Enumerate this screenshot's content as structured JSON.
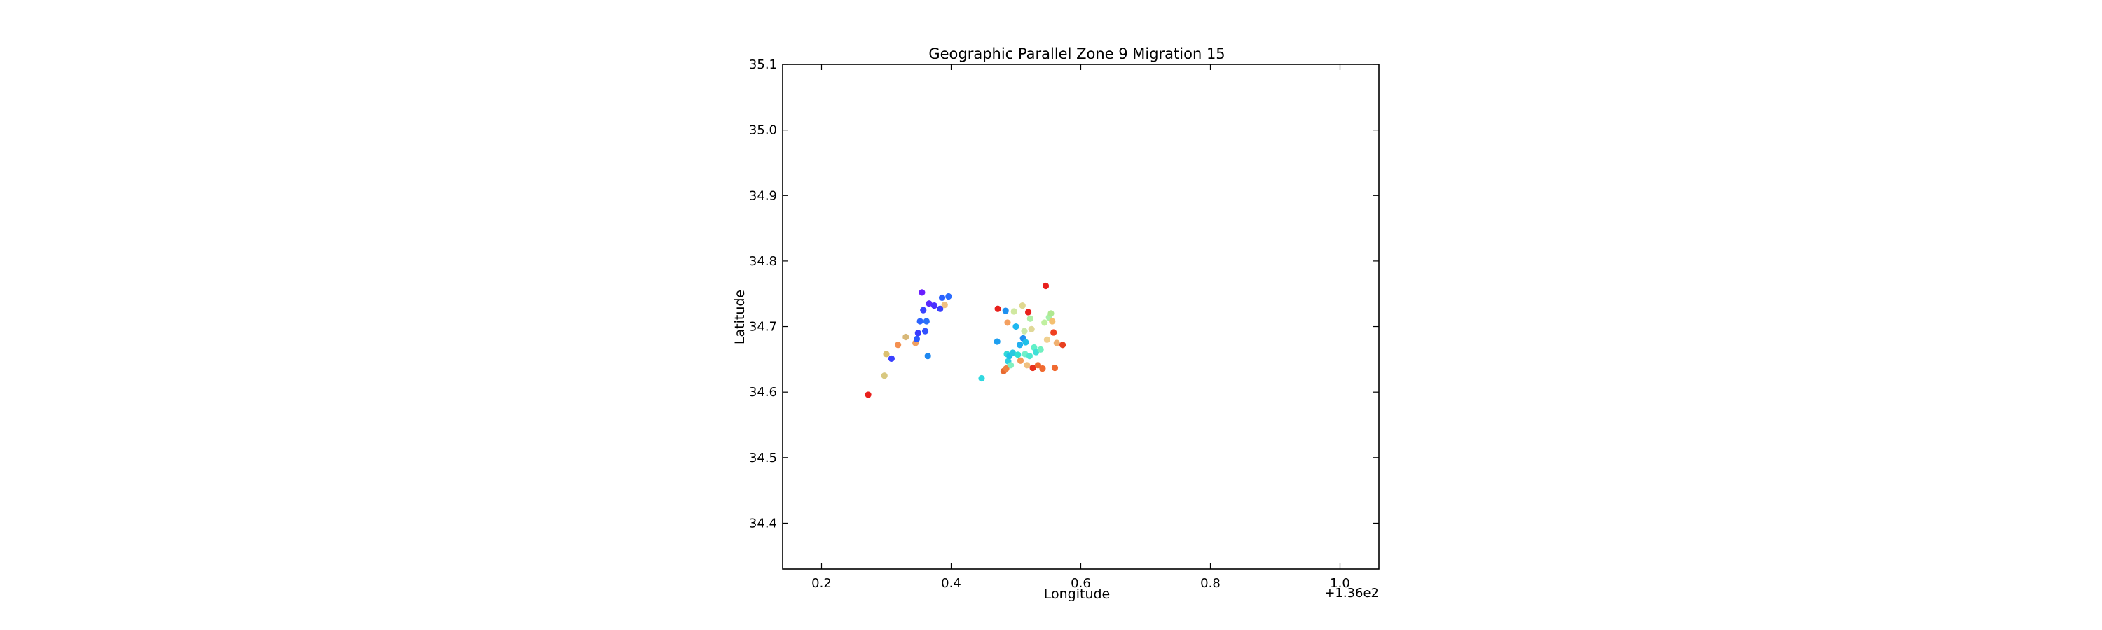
{
  "chart_data": {
    "type": "scatter",
    "title": "Geographic Parallel Zone 9 Migration 15",
    "xlabel": "Longitude",
    "ylabel": "Latitude",
    "x_offset_label": "+1.36e2",
    "x_offset": 136,
    "xlim": [
      136.14,
      137.06
    ],
    "ylim": [
      34.33,
      35.1
    ],
    "x_ticks": [
      136.2,
      136.4,
      136.6,
      136.8,
      137.0
    ],
    "x_tick_labels": [
      "0.2",
      "0.4",
      "0.6",
      "0.8",
      "1.0"
    ],
    "y_ticks": [
      34.4,
      34.5,
      34.6,
      34.7,
      34.8,
      34.9,
      35.0,
      35.1
    ],
    "y_tick_labels": [
      "34.4",
      "34.5",
      "34.6",
      "34.7",
      "34.8",
      "34.9",
      "35.0",
      "35.1"
    ],
    "grid": false,
    "colormap": "rainbow",
    "points": [
      {
        "x": 136.272,
        "y": 34.596,
        "color": "#e8201c"
      },
      {
        "x": 136.297,
        "y": 34.625,
        "color": "#d8c880"
      },
      {
        "x": 136.3,
        "y": 34.658,
        "color": "#dcc070"
      },
      {
        "x": 136.308,
        "y": 34.651,
        "color": "#3a40ff"
      },
      {
        "x": 136.318,
        "y": 34.672,
        "color": "#f49050"
      },
      {
        "x": 136.33,
        "y": 34.684,
        "color": "#d8b878"
      },
      {
        "x": 136.345,
        "y": 34.675,
        "color": "#f0a060"
      },
      {
        "x": 136.347,
        "y": 34.681,
        "color": "#2a5cff"
      },
      {
        "x": 136.349,
        "y": 34.69,
        "color": "#3a3cff"
      },
      {
        "x": 136.352,
        "y": 34.708,
        "color": "#2c64ff"
      },
      {
        "x": 136.355,
        "y": 34.752,
        "color": "#6a1eff"
      },
      {
        "x": 136.357,
        "y": 34.725,
        "color": "#3a44ff"
      },
      {
        "x": 136.36,
        "y": 34.693,
        "color": "#3050ff"
      },
      {
        "x": 136.362,
        "y": 34.708,
        "color": "#2a70f8"
      },
      {
        "x": 136.364,
        "y": 34.655,
        "color": "#1e88f0"
      },
      {
        "x": 136.366,
        "y": 34.735,
        "color": "#5a2aff"
      },
      {
        "x": 136.374,
        "y": 34.732,
        "color": "#4a30ff"
      },
      {
        "x": 136.383,
        "y": 34.727,
        "color": "#3a40ff"
      },
      {
        "x": 136.386,
        "y": 34.744,
        "color": "#2a60ff"
      },
      {
        "x": 136.39,
        "y": 34.733,
        "color": "#f0c080"
      },
      {
        "x": 136.396,
        "y": 34.746,
        "color": "#2a6cff"
      },
      {
        "x": 136.447,
        "y": 34.621,
        "color": "#30d8e0"
      },
      {
        "x": 136.471,
        "y": 34.677,
        "color": "#1e9ff0"
      },
      {
        "x": 136.472,
        "y": 34.727,
        "color": "#e8201c"
      },
      {
        "x": 136.481,
        "y": 34.632,
        "color": "#e86a30"
      },
      {
        "x": 136.484,
        "y": 34.724,
        "color": "#1e90f0"
      },
      {
        "x": 136.485,
        "y": 34.636,
        "color": "#f08040"
      },
      {
        "x": 136.486,
        "y": 34.658,
        "color": "#30d8d8"
      },
      {
        "x": 136.487,
        "y": 34.706,
        "color": "#f4a060"
      },
      {
        "x": 136.488,
        "y": 34.647,
        "color": "#30d0e0"
      },
      {
        "x": 136.49,
        "y": 34.655,
        "color": "#20c0e8"
      },
      {
        "x": 136.492,
        "y": 34.641,
        "color": "#80f0c0"
      },
      {
        "x": 136.495,
        "y": 34.66,
        "color": "#28c8e0"
      },
      {
        "x": 136.497,
        "y": 34.723,
        "color": "#d0e8a0"
      },
      {
        "x": 136.5,
        "y": 34.7,
        "color": "#1eb8f0"
      },
      {
        "x": 136.503,
        "y": 34.657,
        "color": "#30e0d0"
      },
      {
        "x": 136.506,
        "y": 34.672,
        "color": "#20b0f0"
      },
      {
        "x": 136.507,
        "y": 34.648,
        "color": "#f49a58"
      },
      {
        "x": 136.51,
        "y": 34.732,
        "color": "#e0d890"
      },
      {
        "x": 136.511,
        "y": 34.682,
        "color": "#2090f0"
      },
      {
        "x": 136.513,
        "y": 34.693,
        "color": "#c8e8a8"
      },
      {
        "x": 136.514,
        "y": 34.658,
        "color": "#70f0c8"
      },
      {
        "x": 136.515,
        "y": 34.676,
        "color": "#1ec0e8"
      },
      {
        "x": 136.517,
        "y": 34.641,
        "color": "#f0c080"
      },
      {
        "x": 136.519,
        "y": 34.722,
        "color": "#e8201c"
      },
      {
        "x": 136.521,
        "y": 34.655,
        "color": "#50e8d0"
      },
      {
        "x": 136.522,
        "y": 34.712,
        "color": "#b0f0a8"
      },
      {
        "x": 136.524,
        "y": 34.696,
        "color": "#e0d898"
      },
      {
        "x": 136.526,
        "y": 34.637,
        "color": "#e8301c"
      },
      {
        "x": 136.528,
        "y": 34.668,
        "color": "#60f0c8"
      },
      {
        "x": 136.531,
        "y": 34.661,
        "color": "#40e0d8"
      },
      {
        "x": 136.534,
        "y": 34.641,
        "color": "#f06a30"
      },
      {
        "x": 136.538,
        "y": 34.665,
        "color": "#70f0c0"
      },
      {
        "x": 136.541,
        "y": 34.636,
        "color": "#f06a30"
      },
      {
        "x": 136.544,
        "y": 34.706,
        "color": "#c0f0a0"
      },
      {
        "x": 136.546,
        "y": 34.762,
        "color": "#e8201c"
      },
      {
        "x": 136.548,
        "y": 34.68,
        "color": "#f0d090"
      },
      {
        "x": 136.551,
        "y": 34.714,
        "color": "#a8f0a8"
      },
      {
        "x": 136.554,
        "y": 34.72,
        "color": "#b0e890"
      },
      {
        "x": 136.556,
        "y": 34.708,
        "color": "#f4c070"
      },
      {
        "x": 136.558,
        "y": 34.691,
        "color": "#f04020"
      },
      {
        "x": 136.56,
        "y": 34.637,
        "color": "#f06a30"
      },
      {
        "x": 136.563,
        "y": 34.675,
        "color": "#f0b070"
      },
      {
        "x": 136.572,
        "y": 34.672,
        "color": "#e84020"
      }
    ]
  }
}
